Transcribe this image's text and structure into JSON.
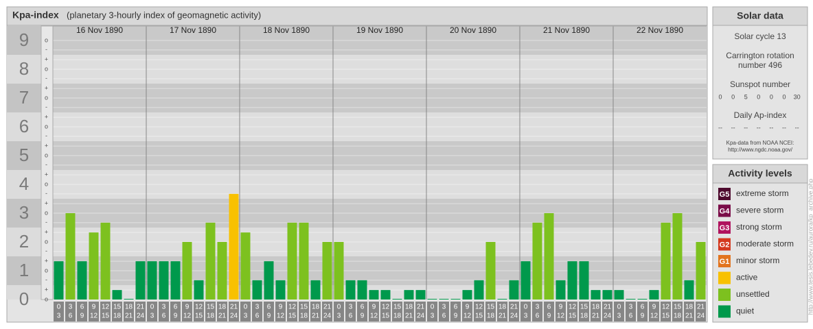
{
  "chart_data": {
    "type": "bar",
    "title": "Kpa-index",
    "subtitle": "(planetary 3-hourly index of geomagnetic activity)",
    "ylim": [
      0,
      9.5
    ],
    "yticks": [
      0,
      1,
      2,
      3,
      4,
      5,
      6,
      7,
      8,
      9
    ],
    "minor_ticks": [
      {
        "value": 0,
        "label": "o"
      },
      {
        "value": 0.33,
        "label": "+"
      },
      {
        "value": 0.67,
        "label": "-"
      },
      {
        "value": 1,
        "label": "o"
      },
      {
        "value": 1.33,
        "label": "+"
      },
      {
        "value": 1.67,
        "label": "-"
      },
      {
        "value": 2,
        "label": "o"
      },
      {
        "value": 2.33,
        "label": "+"
      },
      {
        "value": 2.67,
        "label": "-"
      },
      {
        "value": 3,
        "label": "o"
      },
      {
        "value": 3.33,
        "label": "+"
      },
      {
        "value": 3.67,
        "label": "-"
      },
      {
        "value": 4,
        "label": "o"
      },
      {
        "value": 4.33,
        "label": "+"
      },
      {
        "value": 4.67,
        "label": "-"
      },
      {
        "value": 5,
        "label": "o"
      },
      {
        "value": 5.33,
        "label": "+"
      },
      {
        "value": 5.67,
        "label": "-"
      },
      {
        "value": 6,
        "label": "o"
      },
      {
        "value": 6.33,
        "label": "+"
      },
      {
        "value": 6.67,
        "label": "-"
      },
      {
        "value": 7,
        "label": "o"
      },
      {
        "value": 7.33,
        "label": "+"
      },
      {
        "value": 7.67,
        "label": "-"
      },
      {
        "value": 8,
        "label": "o"
      },
      {
        "value": 8.33,
        "label": "+"
      },
      {
        "value": 8.67,
        "label": "-"
      },
      {
        "value": 9,
        "label": "o"
      }
    ],
    "periods": [
      {
        "from": 0,
        "to": 3
      },
      {
        "from": 3,
        "to": 6
      },
      {
        "from": 6,
        "to": 9
      },
      {
        "from": 9,
        "to": 12
      },
      {
        "from": 12,
        "to": 15
      },
      {
        "from": 15,
        "to": 18
      },
      {
        "from": 18,
        "to": 21
      },
      {
        "from": 21,
        "to": 24
      }
    ],
    "days": [
      {
        "date": "16 Nov 1890",
        "values": [
          1.33,
          3,
          1.33,
          2.33,
          2.67,
          0.33,
          0,
          1.33
        ],
        "colors": [
          "#00994c",
          "#7dc11f",
          "#00994c",
          "#7dc11f",
          "#7dc11f",
          "#00994c",
          "#00994c",
          "#00994c"
        ]
      },
      {
        "date": "17 Nov 1890",
        "values": [
          1.33,
          1.33,
          1.33,
          2,
          0.67,
          2.67,
          2,
          3.67
        ],
        "colors": [
          "#00994c",
          "#00994c",
          "#00994c",
          "#7dc11f",
          "#00994c",
          "#7dc11f",
          "#7dc11f",
          "#f8c100"
        ]
      },
      {
        "date": "18 Nov 1890",
        "values": [
          2.33,
          0.67,
          1.33,
          0.67,
          2.67,
          2.67,
          0.67,
          2
        ],
        "colors": [
          "#7dc11f",
          "#00994c",
          "#00994c",
          "#00994c",
          "#7dc11f",
          "#7dc11f",
          "#00994c",
          "#7dc11f"
        ]
      },
      {
        "date": "19 Nov 1890",
        "values": [
          2,
          0.67,
          0.67,
          0.33,
          0.33,
          0,
          0.33,
          0.33
        ],
        "colors": [
          "#7dc11f",
          "#00994c",
          "#00994c",
          "#00994c",
          "#00994c",
          "#00994c",
          "#00994c",
          "#00994c"
        ]
      },
      {
        "date": "20 Nov 1890",
        "values": [
          0,
          0,
          0,
          0.33,
          0.67,
          2,
          0,
          0.67
        ],
        "colors": [
          "#00994c",
          "#00994c",
          "#00994c",
          "#00994c",
          "#00994c",
          "#7dc11f",
          "#00994c",
          "#00994c"
        ]
      },
      {
        "date": "21 Nov 1890",
        "values": [
          1.33,
          2.67,
          3,
          0.67,
          1.33,
          1.33,
          0.33,
          0.33
        ],
        "colors": [
          "#00994c",
          "#7dc11f",
          "#7dc11f",
          "#00994c",
          "#00994c",
          "#00994c",
          "#00994c",
          "#00994c"
        ]
      },
      {
        "date": "22 Nov 1890",
        "values": [
          0.33,
          0,
          0,
          0.33,
          2.67,
          3,
          0.67,
          2
        ],
        "colors": [
          "#00994c",
          "#00994c",
          "#00994c",
          "#00994c",
          "#7dc11f",
          "#7dc11f",
          "#00994c",
          "#7dc11f"
        ]
      }
    ]
  },
  "solar": {
    "title": "Solar data",
    "cycle": "Solar cycle 13",
    "carrington": [
      "Carrington rotation",
      "number 496"
    ],
    "sunspot_title": "Sunspot number",
    "sunspots": [
      0,
      0,
      5,
      0,
      0,
      0,
      30
    ],
    "ap_title": "Daily Ap-index",
    "ap": [
      "--",
      "--",
      "--",
      "--",
      "--",
      "--",
      "--"
    ],
    "source": [
      "Kpa-data from NOAA NCEI:",
      "http://www.ngdc.noaa.gov/"
    ]
  },
  "legend": {
    "title": "Activity levels",
    "items": [
      {
        "code": "G5",
        "label": "extreme storm",
        "color": "#4e0a2e"
      },
      {
        "code": "G4",
        "label": "severe storm",
        "color": "#7a0c48"
      },
      {
        "code": "G3",
        "label": "strong storm",
        "color": "#b0135e"
      },
      {
        "code": "G2",
        "label": "moderate storm",
        "color": "#d4391f"
      },
      {
        "code": "G1",
        "label": "minor storm",
        "color": "#e2741e"
      },
      {
        "label": "active",
        "color": "#f8c100"
      },
      {
        "label": "unsettled",
        "color": "#7dc11f"
      },
      {
        "label": "quiet",
        "color": "#00994c"
      }
    ]
  },
  "side_url": "http://www.tesis.lebedev.ru/aurora/kp_archive.php"
}
